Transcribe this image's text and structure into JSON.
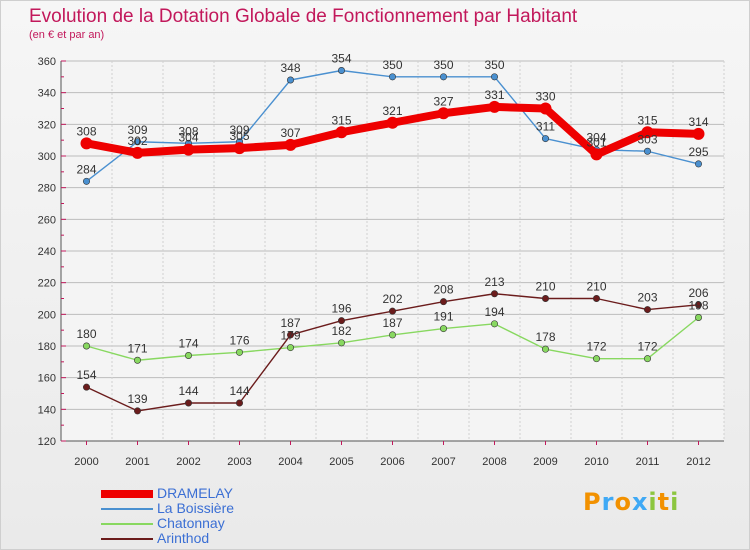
{
  "chart_data": {
    "type": "line",
    "title": "Evolution de la Dotation Globale de Fonctionnement par Habitant",
    "subtitle": "(en € et par an)",
    "xlabel": "",
    "ylabel": "",
    "ylim": [
      120,
      360
    ],
    "yticks": [
      120,
      140,
      160,
      180,
      200,
      220,
      240,
      260,
      280,
      300,
      320,
      340,
      360
    ],
    "categories": [
      "2000",
      "2001",
      "2002",
      "2003",
      "2004",
      "2005",
      "2006",
      "2007",
      "2008",
      "2009",
      "2010",
      "2011",
      "2012"
    ],
    "grid": true,
    "legend_position": "bottom-left",
    "series": [
      {
        "name": "La Boissière",
        "color": "#4a90d0",
        "values": [
          284,
          309,
          308,
          309,
          348,
          354,
          350,
          350,
          350,
          311,
          304,
          303,
          295
        ]
      },
      {
        "name": "Chatonnay",
        "color": "#88d860",
        "values": [
          180,
          171,
          174,
          176,
          179,
          182,
          187,
          191,
          194,
          178,
          172,
          172,
          198
        ]
      },
      {
        "name": "Arinthod",
        "color": "#6b1c1c",
        "values": [
          154,
          139,
          144,
          144,
          187,
          196,
          202,
          208,
          213,
          210,
          210,
          203,
          206
        ]
      },
      {
        "name": "DRAMELAY",
        "color": "#ee0000",
        "values": [
          308,
          302,
          304,
          305,
          307,
          315,
          321,
          327,
          331,
          330,
          301,
          315,
          314
        ]
      }
    ],
    "legend_order": [
      "DRAMELAY",
      "La Boissière",
      "Chatonnay",
      "Arinthod"
    ]
  },
  "branding": {
    "logo_letters": [
      "P",
      "r",
      "o",
      "x",
      "i",
      "t",
      "i"
    ],
    "logo_colors": [
      "#f29100",
      "#3fa9f5",
      "#f29100",
      "#3fa9f5",
      "#8cc63f",
      "#f29100",
      "#8cc63f"
    ],
    "accent": "#c2185b"
  }
}
